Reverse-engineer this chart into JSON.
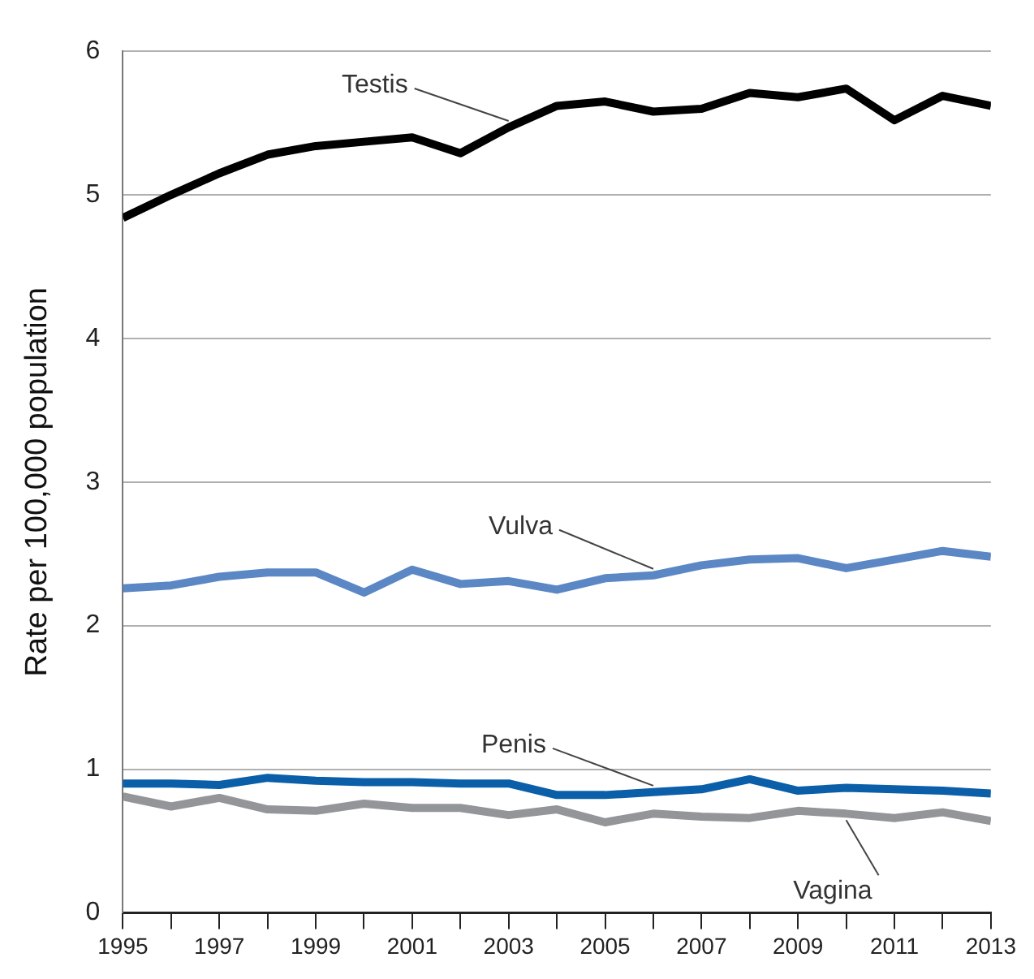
{
  "chart_data": {
    "type": "line",
    "ylabel": "Rate per 100,000 population",
    "x": [
      1995,
      1996,
      1997,
      1998,
      1999,
      2000,
      2001,
      2002,
      2003,
      2004,
      2005,
      2006,
      2007,
      2008,
      2009,
      2010,
      2011,
      2012,
      2013
    ],
    "series": [
      {
        "name": "Testis",
        "color": "#000000",
        "values": [
          4.84,
          5.0,
          5.15,
          5.28,
          5.34,
          5.37,
          5.4,
          5.29,
          5.47,
          5.62,
          5.65,
          5.58,
          5.6,
          5.71,
          5.68,
          5.74,
          5.52,
          5.69,
          5.62
        ]
      },
      {
        "name": "Vulva",
        "color": "#5b87c5",
        "values": [
          2.26,
          2.28,
          2.34,
          2.37,
          2.37,
          2.23,
          2.39,
          2.29,
          2.31,
          2.25,
          2.33,
          2.35,
          2.42,
          2.46,
          2.47,
          2.4,
          2.46,
          2.52,
          2.48
        ]
      },
      {
        "name": "Penis",
        "color": "#0a5fa8",
        "values": [
          0.9,
          0.9,
          0.89,
          0.94,
          0.92,
          0.91,
          0.91,
          0.9,
          0.9,
          0.82,
          0.82,
          0.84,
          0.86,
          0.93,
          0.85,
          0.87,
          0.86,
          0.85,
          0.83
        ]
      },
      {
        "name": "Vagina",
        "color": "#939598",
        "values": [
          0.81,
          0.74,
          0.8,
          0.72,
          0.71,
          0.76,
          0.73,
          0.73,
          0.68,
          0.72,
          0.63,
          0.69,
          0.67,
          0.66,
          0.71,
          0.69,
          0.66,
          0.7,
          0.64
        ]
      }
    ],
    "xlim": [
      1995,
      2013
    ],
    "xticks": [
      1995,
      {
        "value": 1996,
        "label": null
      },
      1997,
      {
        "value": 1998,
        "label": null
      },
      1999,
      {
        "value": 2000,
        "label": null
      },
      2001,
      {
        "value": 2002,
        "label": null
      },
      2003,
      {
        "value": 2004,
        "label": null
      },
      2005,
      {
        "value": 2006,
        "label": null
      },
      2007,
      {
        "value": 2008,
        "label": null
      },
      2009,
      {
        "value": 2010,
        "label": null
      },
      2011,
      {
        "value": 2012,
        "label": null
      },
      2013
    ],
    "ylim": [
      0,
      6
    ],
    "yticks": [
      0,
      1,
      2,
      3,
      4,
      5,
      6
    ],
    "grid": "y",
    "legend": false,
    "marker": "none",
    "line_style": "solid"
  }
}
